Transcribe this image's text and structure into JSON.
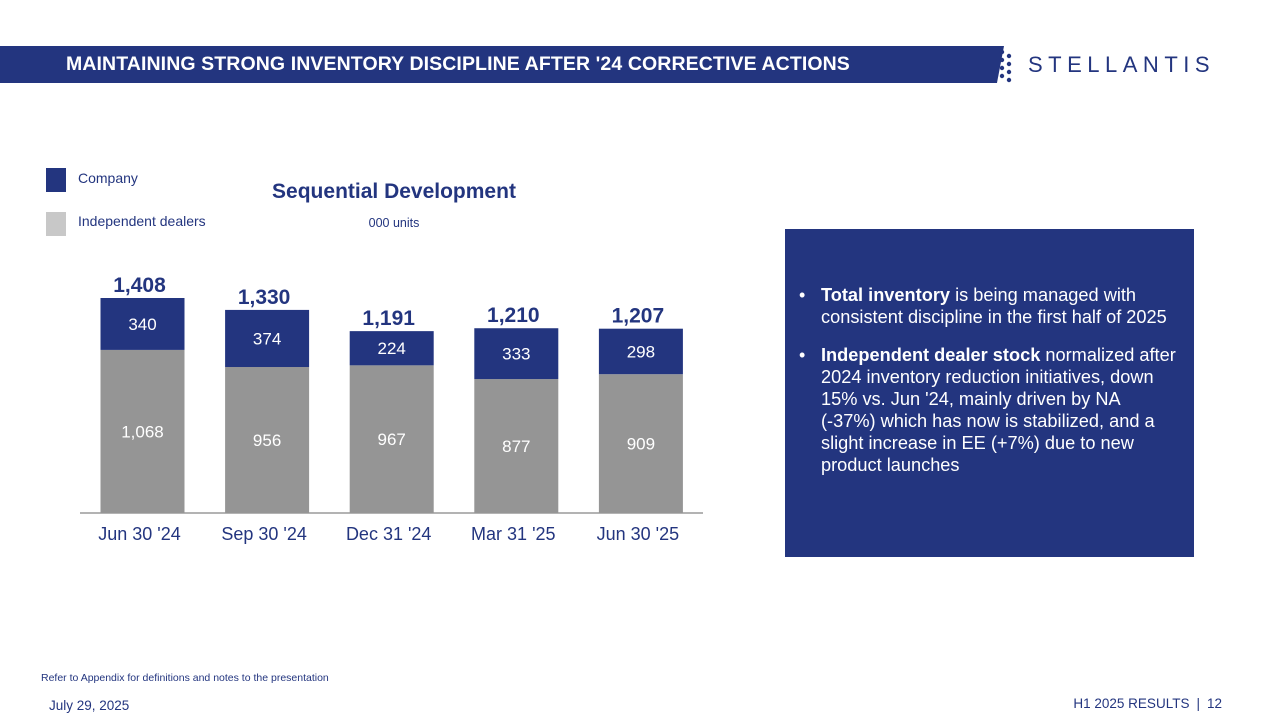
{
  "header": {
    "title": "MAINTAINING STRONG INVENTORY DISCIPLINE AFTER '24 CORRECTIVE ACTIONS",
    "logo_text": "STELLANTIS"
  },
  "colors": {
    "brand_navy": "#23357f",
    "dealer_gray": "#959595",
    "axis": "#9a9a9a"
  },
  "legend": [
    {
      "label": "Company",
      "color": "#23357f"
    },
    {
      "label": "Independent dealers",
      "color": "#c8c8c8"
    }
  ],
  "chart_data": {
    "type": "bar",
    "stacked": true,
    "title": "Sequential Development",
    "subtitle": "000 units",
    "categories": [
      "Jun 30 '24",
      "Sep 30 '24",
      "Dec 31 '24",
      "Mar 31 '25",
      "Jun 30 '25"
    ],
    "series": [
      {
        "name": "Independent dealers",
        "values": [
          1068,
          956,
          967,
          877,
          909
        ],
        "labels": [
          "1,068",
          "956",
          "967",
          "877",
          "909"
        ]
      },
      {
        "name": "Company",
        "values": [
          340,
          374,
          224,
          333,
          298
        ],
        "labels": [
          "340",
          "374",
          "224",
          "333",
          "298"
        ]
      }
    ],
    "totals": [
      1408,
      1330,
      1191,
      1210,
      1207
    ],
    "total_labels": [
      "1,408",
      "1,330",
      "1,191",
      "1,210",
      "1,207"
    ],
    "ylim": [
      0,
      1408
    ],
    "grid": false,
    "legend_position": "top-left"
  },
  "bullets": [
    {
      "bold": "Total inventory",
      "text": " is being managed with consistent discipline in the first half of 2025"
    },
    {
      "bold": "Independent dealer stock",
      "text": " normalized after 2024 inventory reduction initiatives, down 15% vs. Jun '24, mainly driven by NA (-37%) which has now is stabilized, and a slight increase in EE (+7%) due to new product launches"
    }
  ],
  "footer": {
    "note": "Refer to Appendix for definitions and notes to the presentation",
    "date": "July 29, 2025",
    "section": "H1 2025 RESULTS",
    "separator": "|",
    "page": "12"
  }
}
